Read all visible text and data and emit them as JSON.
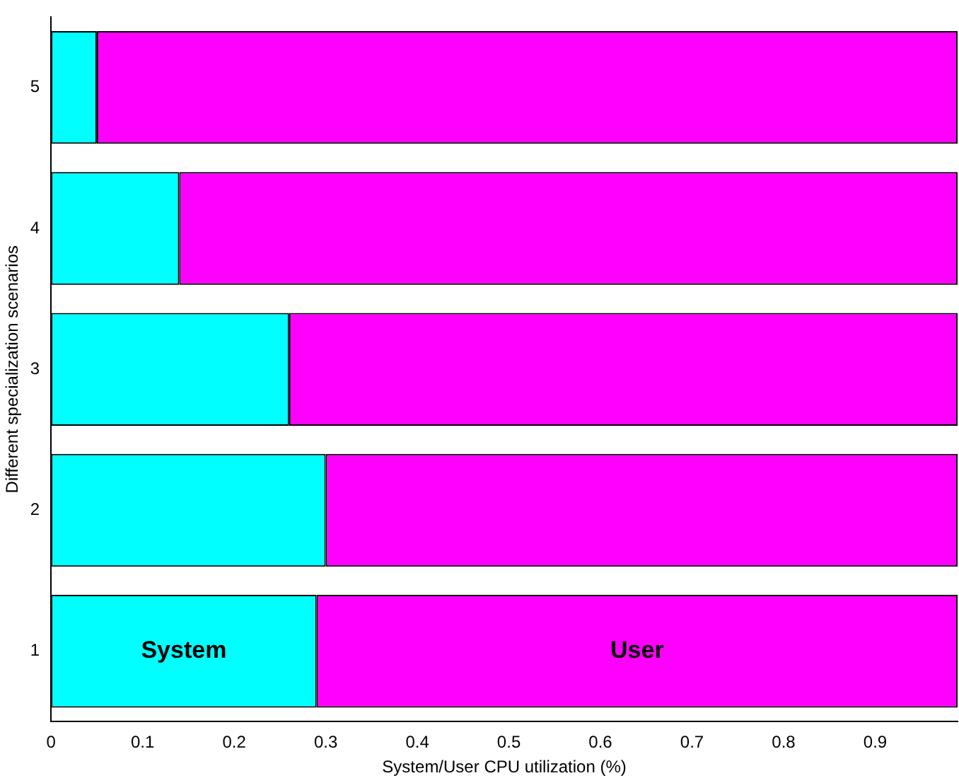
{
  "chart_data": {
    "type": "bar",
    "orientation": "horizontal",
    "stacked": true,
    "xlabel": "System/User CPU utilization (%)",
    "ylabel": "Different specialization scenarios",
    "categories": [
      "5",
      "4",
      "3",
      "2",
      "1"
    ],
    "series": [
      {
        "name": "System",
        "color": "#00ffff",
        "values": [
          0.05,
          0.14,
          0.26,
          0.3,
          0.29
        ]
      },
      {
        "name": "User",
        "color": "#ff00ff",
        "values": [
          0.94,
          0.85,
          0.73,
          0.69,
          0.7
        ]
      }
    ],
    "xlim": [
      0,
      0.99
    ],
    "xticks": [
      0,
      0.1,
      0.2,
      0.3,
      0.4,
      0.5,
      0.6,
      0.7,
      0.8,
      0.9
    ],
    "grid": false,
    "legend": false
  }
}
